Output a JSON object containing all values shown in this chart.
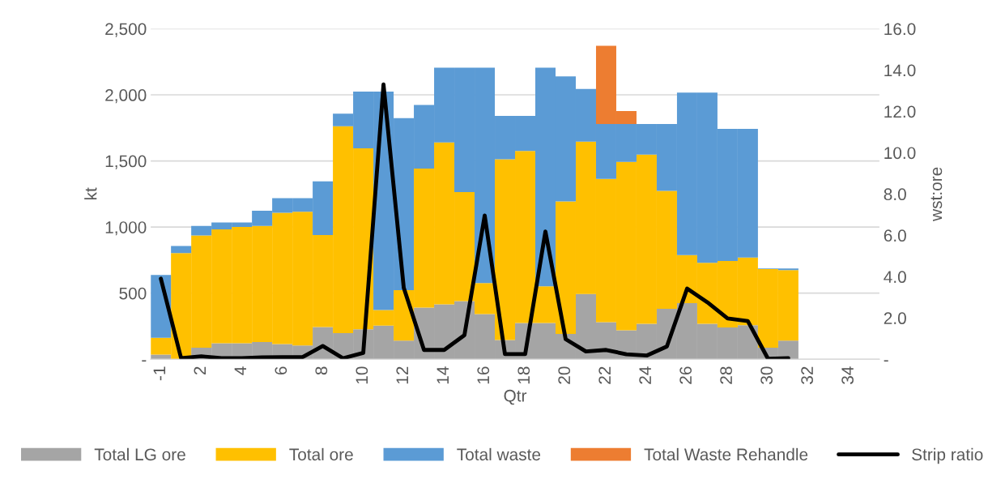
{
  "chart_data": {
    "type": "bar",
    "stacked": true,
    "xlabel": "Qtr",
    "ylabel": "kt",
    "y2label": "wst:ore",
    "categories": [
      "-1",
      null,
      "2",
      null,
      "4",
      null,
      "6",
      null,
      "8",
      null,
      "10",
      null,
      "12",
      null,
      "14",
      null,
      "16",
      null,
      "18",
      null,
      "20",
      null,
      "22",
      null,
      "24",
      null,
      "26",
      null,
      "28",
      null,
      "30",
      null,
      "32",
      null,
      "34",
      null
    ],
    "series": [
      {
        "name": "Total LG ore",
        "color": "#a5a5a5",
        "values": [
          35,
          null,
          88,
          121,
          121,
          131,
          115,
          104,
          244,
          197,
          227,
          254,
          141,
          391,
          416,
          440,
          342,
          145,
          274,
          274,
          192,
          493,
          281,
          219,
          268,
          381,
          424,
          268,
          240,
          258,
          88,
          141,
          null,
          null,
          null,
          null
        ]
      },
      {
        "name": "Total ore",
        "color": "#ffc000",
        "values": [
          127,
          803,
          848,
          862,
          880,
          878,
          993,
          1012,
          696,
          1566,
          1368,
          119,
          381,
          1051,
          1224,
          825,
          234,
          1368,
          1301,
          277,
          1002,
          1153,
          1083,
          1274,
          1280,
          893,
          364,
          461,
          503,
          512,
          594,
          533,
          null,
          null,
          null,
          null
        ]
      },
      {
        "name": "Total waste",
        "color": "#5b9bd5",
        "values": [
          475,
          53,
          73,
          51,
          33,
          115,
          110,
          102,
          405,
          94,
          430,
          1652,
          1302,
          481,
          565,
          940,
          1629,
          328,
          266,
          1654,
          946,
          399,
          415,
          286,
          231,
          505,
          1229,
          1288,
          1000,
          973,
          4,
          12,
          null,
          null,
          null,
          null
        ]
      },
      {
        "name": "Total Waste Rehandle",
        "color": "#ed7d31",
        "values": [
          null,
          null,
          null,
          null,
          null,
          null,
          null,
          null,
          null,
          null,
          null,
          null,
          null,
          null,
          null,
          null,
          null,
          null,
          null,
          null,
          null,
          null,
          592,
          99,
          null,
          null,
          null,
          null,
          null,
          null,
          null,
          null,
          null,
          null,
          null,
          null
        ]
      },
      {
        "name": "Strip ratio",
        "type": "line",
        "axis": "y2",
        "color": "#000000",
        "values": [
          3.9,
          0.05,
          0.14,
          0.05,
          0.05,
          0.09,
          0.1,
          0.1,
          0.64,
          0.05,
          0.31,
          13.3,
          3.46,
          0.45,
          0.45,
          1.17,
          6.96,
          0.25,
          0.25,
          6.18,
          0.97,
          0.38,
          0.45,
          0.24,
          0.18,
          0.62,
          3.42,
          2.76,
          1.98,
          1.85,
          0.02,
          0.05,
          null,
          null,
          null,
          null
        ]
      }
    ],
    "ylim": [
      0,
      2500
    ],
    "yticks": [
      {
        "value": 0,
        "label": "-"
      },
      500,
      {
        "value": 1000,
        "label": "1,000"
      },
      {
        "value": 1500,
        "label": "1,500"
      },
      {
        "value": 2000,
        "label": "2,000"
      },
      {
        "value": 2500,
        "label": "2,500"
      }
    ],
    "y2lim": [
      0,
      16
    ],
    "y2ticks": [
      {
        "value": 0,
        "label": "-"
      },
      {
        "value": 2,
        "label": "2.0"
      },
      {
        "value": 4,
        "label": "4.0"
      },
      {
        "value": 6,
        "label": "6.0"
      },
      {
        "value": 8,
        "label": "8.0"
      },
      {
        "value": 10,
        "label": "10.0"
      },
      {
        "value": 12,
        "label": "12.0"
      },
      {
        "value": 14,
        "label": "14.0"
      },
      {
        "value": 16,
        "label": "16.0"
      }
    ],
    "grid": "y",
    "legend": "bottom",
    "line_style": "solid",
    "marker": "none"
  }
}
